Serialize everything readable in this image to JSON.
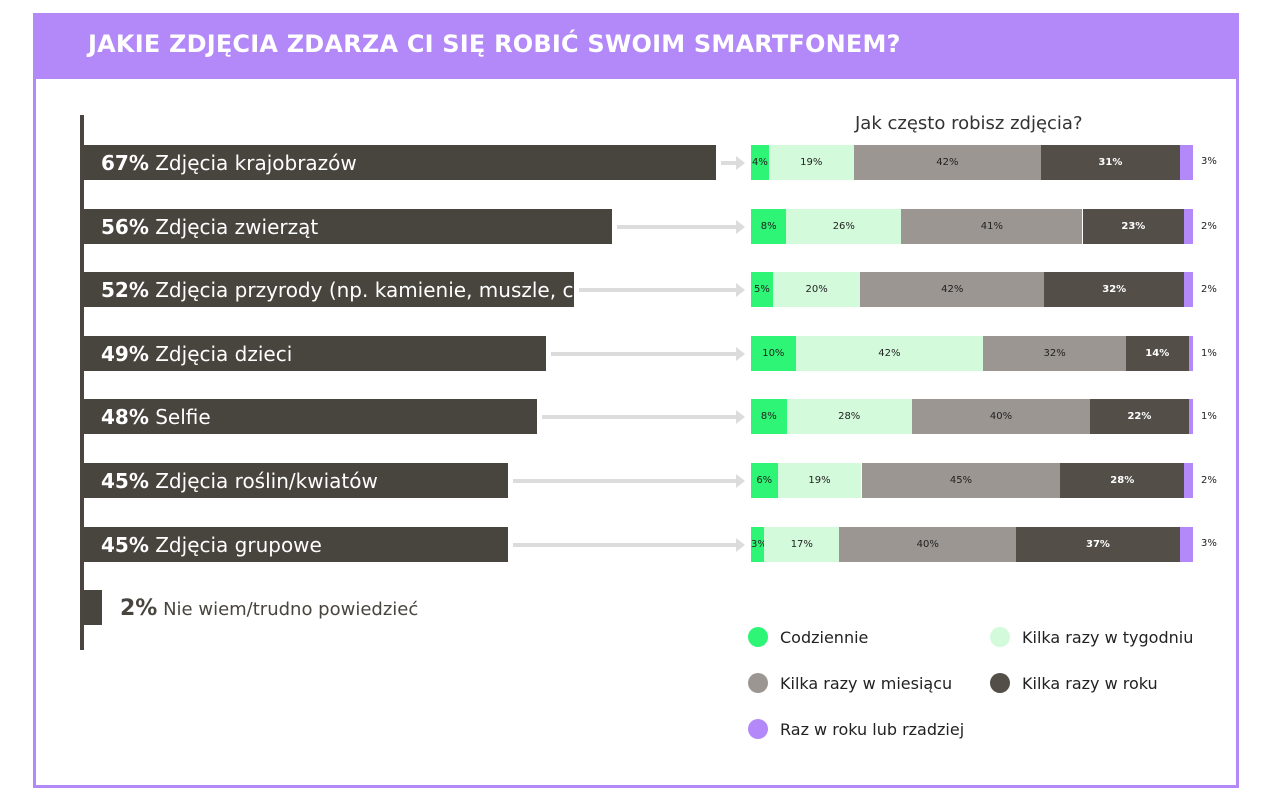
{
  "title": "JAKIE ZDJĘCIA ZDARZA CI SIĘ ROBIĆ SWOIM SMARTFONEM?",
  "colors": {
    "accent": "#b388f9",
    "bar": "#48443e",
    "Codziennie": "#2ef575",
    "Kilka razy w tygodniu": "#d3fbdb",
    "Kilka razy w miesiącu": "#9b9692",
    "Kilka razy w roku": "#534e48",
    "Raz w roku lub rzadziej": "#b388f9"
  },
  "chart_data": [
    {
      "type": "bar",
      "orientation": "horizontal",
      "categories": [
        "Zdjęcia krajobrazów",
        "Zdjęcia zwierząt",
        "Zdjęcia przyrody (np. kamienie, muszle, chmury)",
        "Zdjęcia dzieci",
        "Selfie",
        "Zdjęcia roślin/kwiatów",
        "Zdjęcia grupowe",
        "Nie wiem/trudno powiedzieć"
      ],
      "values": [
        67,
        56,
        52,
        49,
        48,
        45,
        45,
        2
      ],
      "labels": [
        "67%",
        "56%",
        "52%",
        "49%",
        "48%",
        "45%",
        "45%",
        "2%"
      ]
    },
    {
      "type": "bar",
      "stacked": true,
      "orientation": "horizontal",
      "title": "Jak często robisz zdjęcia?",
      "categories": [
        "Zdjęcia krajobrazów",
        "Zdjęcia zwierząt",
        "Zdjęcia przyrody (np. kamienie, muszle, chmury)",
        "Zdjęcia dzieci",
        "Selfie",
        "Zdjęcia roślin/kwiatów",
        "Zdjęcia grupowe"
      ],
      "series": [
        {
          "name": "Codziennie",
          "values": [
            4,
            8,
            5,
            10,
            8,
            6,
            3
          ]
        },
        {
          "name": "Kilka razy w tygodniu",
          "values": [
            19,
            26,
            20,
            42,
            28,
            19,
            17
          ]
        },
        {
          "name": "Kilka razy w miesiącu",
          "values": [
            42,
            41,
            42,
            32,
            40,
            45,
            40
          ]
        },
        {
          "name": "Kilka razy w roku",
          "values": [
            31,
            23,
            32,
            14,
            22,
            28,
            37
          ]
        },
        {
          "name": "Raz w roku lub rzadziej",
          "values": [
            3,
            2,
            2,
            1,
            1,
            2,
            3
          ]
        }
      ],
      "legend": "bottom-right"
    }
  ]
}
